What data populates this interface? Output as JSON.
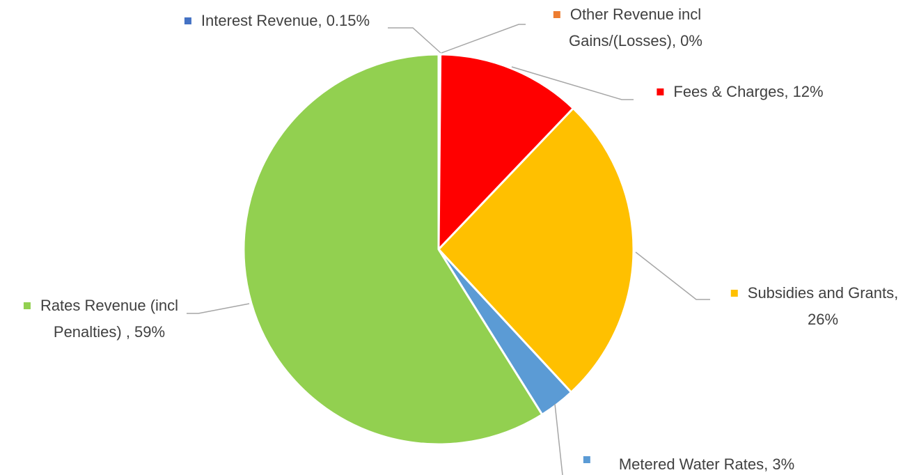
{
  "chart_data": {
    "type": "pie",
    "values": [
      0.15,
      0,
      12,
      26,
      3,
      59
    ],
    "value_labels": [
      [
        "Interest Revenue, 0.15%"
      ],
      [
        "Other Revenue incl",
        "Gains/(Losses), 0%"
      ],
      [
        "Fees & Charges, 12%"
      ],
      [
        "Subsidies and Grants,",
        "26%"
      ],
      [
        "Metered Water Rates, 3%"
      ],
      [
        "Rates Revenue (incl",
        "Penalties) , 59%"
      ]
    ],
    "colors": [
      "#4472c4",
      "#ed7d31",
      "#ff0000",
      "#ffc000",
      "#5b9bd5",
      "#92d050"
    ]
  }
}
